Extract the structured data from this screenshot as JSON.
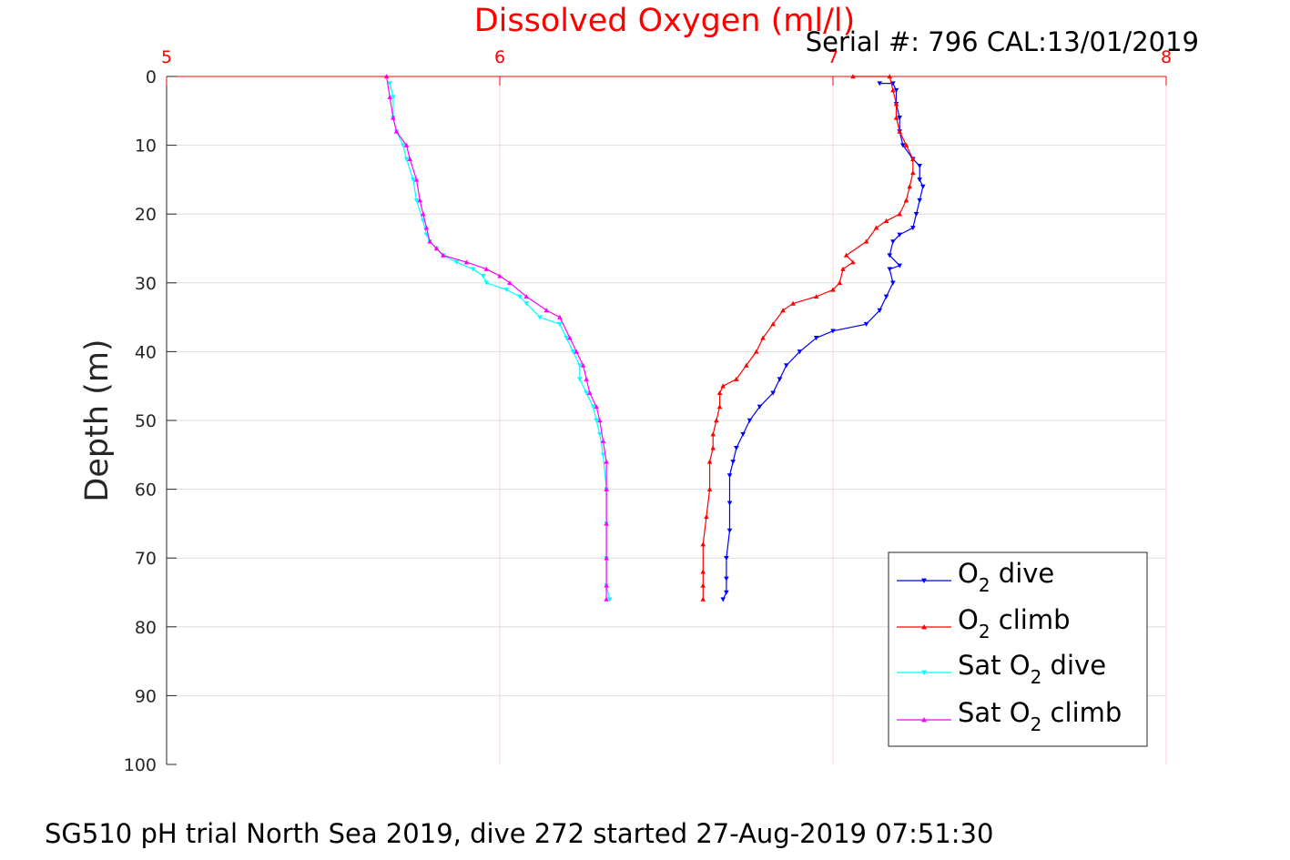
{
  "chart_data": {
    "type": "line",
    "title": "Dissolved Oxygen (ml/l)",
    "subtitle": "Serial #: 796  CAL:13/01/2019",
    "footer": "SG510 pH trial North Sea 2019, dive 272 started 27-Aug-2019 07:51:30",
    "xlabel": "",
    "ylabel": "Depth (m)",
    "xlim": [
      5,
      8
    ],
    "ylim": [
      0,
      100
    ],
    "y_reversed": true,
    "x_axis_position": "top",
    "x_ticks": [
      "5",
      "6",
      "7",
      "8"
    ],
    "y_ticks": [
      "0",
      "10",
      "20",
      "30",
      "40",
      "50",
      "60",
      "70",
      "80",
      "90",
      "100"
    ],
    "grid": true,
    "legend_position": "bottom-right",
    "colors": {
      "title": "#ff0000",
      "x_axis": "#ff0000",
      "o2_dive": "#0000ff",
      "o2_climb": "#ff0000",
      "sat_dive": "#00ffff",
      "sat_climb": "#ff00ff"
    },
    "series": [
      {
        "name_main": "O",
        "name_sub": "2",
        "name_rest": " dive",
        "color": "#0000ff",
        "marker": "triangle-down",
        "points": [
          [
            7.14,
            1
          ],
          [
            7.18,
            1
          ],
          [
            7.19,
            2
          ],
          [
            7.19,
            4
          ],
          [
            7.2,
            6
          ],
          [
            7.2,
            8
          ],
          [
            7.21,
            10
          ],
          [
            7.24,
            12
          ],
          [
            7.26,
            13
          ],
          [
            7.26,
            15
          ],
          [
            7.27,
            16
          ],
          [
            7.26,
            18
          ],
          [
            7.25,
            20
          ],
          [
            7.24,
            22
          ],
          [
            7.2,
            23
          ],
          [
            7.18,
            24
          ],
          [
            7.17,
            26
          ],
          [
            7.2,
            27.5
          ],
          [
            7.17,
            28
          ],
          [
            7.18,
            30
          ],
          [
            7.16,
            32
          ],
          [
            7.14,
            34
          ],
          [
            7.1,
            36
          ],
          [
            7.0,
            37
          ],
          [
            6.95,
            38
          ],
          [
            6.9,
            40
          ],
          [
            6.86,
            42
          ],
          [
            6.84,
            44
          ],
          [
            6.82,
            46
          ],
          [
            6.78,
            48
          ],
          [
            6.75,
            50
          ],
          [
            6.73,
            52
          ],
          [
            6.71,
            54
          ],
          [
            6.7,
            56
          ],
          [
            6.69,
            58
          ],
          [
            6.69,
            62
          ],
          [
            6.69,
            66
          ],
          [
            6.68,
            70
          ],
          [
            6.68,
            73
          ],
          [
            6.68,
            75
          ],
          [
            6.67,
            76
          ]
        ]
      },
      {
        "name_main": "O",
        "name_sub": "2",
        "name_rest": " climb",
        "color": "#ff0000",
        "marker": "triangle-up",
        "points": [
          [
            7.06,
            0
          ],
          [
            7.17,
            0
          ],
          [
            7.18,
            2
          ],
          [
            7.19,
            4
          ],
          [
            7.19,
            6
          ],
          [
            7.2,
            8
          ],
          [
            7.22,
            10
          ],
          [
            7.24,
            12
          ],
          [
            7.24,
            14
          ],
          [
            7.23,
            16
          ],
          [
            7.22,
            18
          ],
          [
            7.2,
            20
          ],
          [
            7.16,
            21
          ],
          [
            7.13,
            22
          ],
          [
            7.1,
            24
          ],
          [
            7.04,
            26
          ],
          [
            7.06,
            27
          ],
          [
            7.03,
            28
          ],
          [
            7.02,
            30
          ],
          [
            7.0,
            31
          ],
          [
            6.95,
            32
          ],
          [
            6.88,
            33
          ],
          [
            6.85,
            34
          ],
          [
            6.82,
            36
          ],
          [
            6.79,
            38
          ],
          [
            6.77,
            40
          ],
          [
            6.74,
            42
          ],
          [
            6.71,
            44
          ],
          [
            6.67,
            45
          ],
          [
            6.66,
            46
          ],
          [
            6.66,
            48
          ],
          [
            6.65,
            50
          ],
          [
            6.64,
            52
          ],
          [
            6.64,
            54
          ],
          [
            6.63,
            56
          ],
          [
            6.63,
            60
          ],
          [
            6.62,
            64
          ],
          [
            6.61,
            68
          ],
          [
            6.61,
            72
          ],
          [
            6.61,
            74
          ],
          [
            6.61,
            76
          ]
        ]
      },
      {
        "name_main": "Sat O",
        "name_sub": "2",
        "name_rest": " dive",
        "color": "#00ffff",
        "marker": "triangle-down",
        "points": [
          [
            5.67,
            1
          ],
          [
            5.68,
            3
          ],
          [
            5.68,
            6
          ],
          [
            5.69,
            8
          ],
          [
            5.71,
            10
          ],
          [
            5.72,
            12
          ],
          [
            5.74,
            15
          ],
          [
            5.75,
            18
          ],
          [
            5.77,
            21
          ],
          [
            5.78,
            23
          ],
          [
            5.79,
            24
          ],
          [
            5.81,
            25
          ],
          [
            5.83,
            26
          ],
          [
            5.87,
            27
          ],
          [
            5.92,
            28
          ],
          [
            5.95,
            29
          ],
          [
            5.96,
            30
          ],
          [
            6.02,
            31
          ],
          [
            6.06,
            32
          ],
          [
            6.08,
            33
          ],
          [
            6.12,
            35
          ],
          [
            6.18,
            36
          ],
          [
            6.2,
            38
          ],
          [
            6.22,
            40
          ],
          [
            6.24,
            42
          ],
          [
            6.24,
            44
          ],
          [
            6.26,
            46
          ],
          [
            6.28,
            48
          ],
          [
            6.29,
            50
          ],
          [
            6.3,
            52
          ],
          [
            6.31,
            55
          ],
          [
            6.32,
            60
          ],
          [
            6.32,
            65
          ],
          [
            6.32,
            70
          ],
          [
            6.32,
            74
          ],
          [
            6.33,
            76
          ]
        ]
      },
      {
        "name_main": "Sat O",
        "name_sub": "2",
        "name_rest": " climb",
        "color": "#ff00ff",
        "marker": "triangle-up",
        "points": [
          [
            5.66,
            0
          ],
          [
            5.67,
            3
          ],
          [
            5.68,
            6
          ],
          [
            5.69,
            8
          ],
          [
            5.72,
            10
          ],
          [
            5.73,
            12
          ],
          [
            5.75,
            15
          ],
          [
            5.76,
            18
          ],
          [
            5.77,
            20
          ],
          [
            5.78,
            22
          ],
          [
            5.79,
            24
          ],
          [
            5.81,
            25
          ],
          [
            5.83,
            26
          ],
          [
            5.9,
            27
          ],
          [
            5.96,
            28
          ],
          [
            6.0,
            29
          ],
          [
            6.03,
            30
          ],
          [
            6.08,
            32
          ],
          [
            6.14,
            34
          ],
          [
            6.18,
            35
          ],
          [
            6.21,
            38
          ],
          [
            6.23,
            40
          ],
          [
            6.25,
            42
          ],
          [
            6.26,
            44
          ],
          [
            6.27,
            46
          ],
          [
            6.29,
            48
          ],
          [
            6.3,
            50
          ],
          [
            6.31,
            53
          ],
          [
            6.32,
            56
          ],
          [
            6.32,
            60
          ],
          [
            6.32,
            65
          ],
          [
            6.32,
            70
          ],
          [
            6.32,
            74
          ],
          [
            6.32,
            76
          ]
        ]
      }
    ]
  }
}
